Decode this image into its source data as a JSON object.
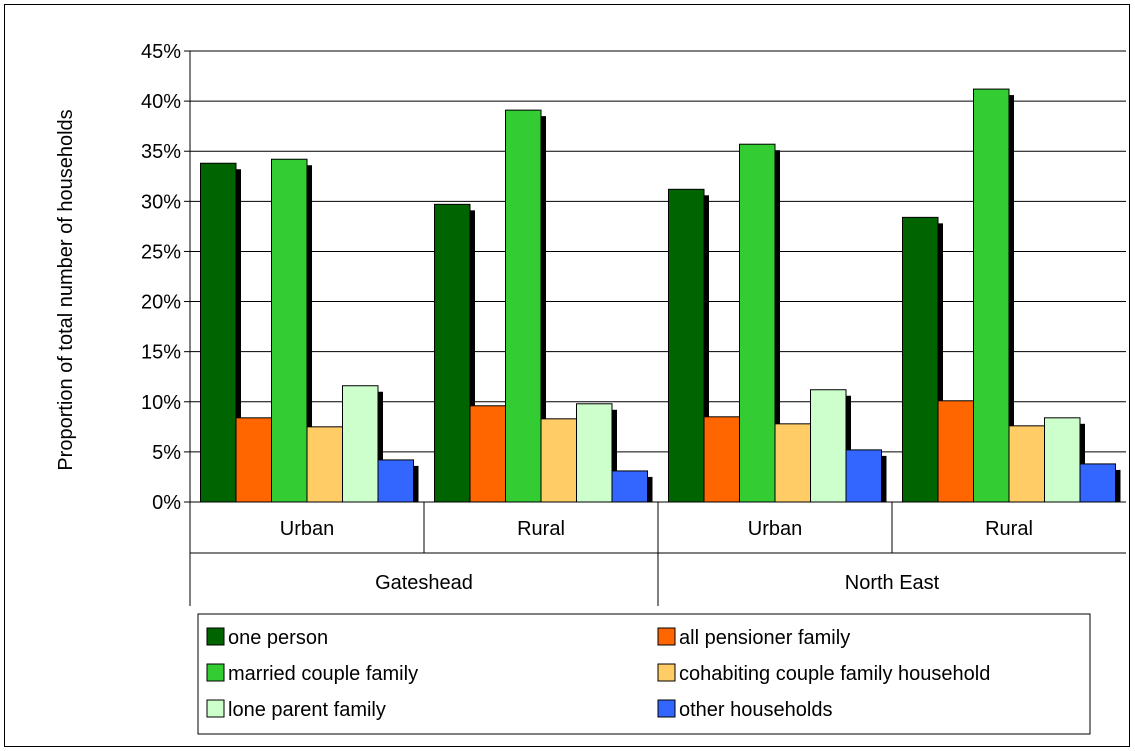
{
  "chart_data": {
    "type": "bar",
    "title": "",
    "ylabel": "Proportion of total number of households",
    "ylim": [
      0,
      45
    ],
    "yticks": [
      "0%",
      "5%",
      "10%",
      "15%",
      "20%",
      "25%",
      "30%",
      "35%",
      "40%",
      "45%"
    ],
    "groups": [
      {
        "label": "Gateshead",
        "categories": [
          "Urban",
          "Rural"
        ]
      },
      {
        "label": "North East",
        "categories": [
          "Urban",
          "Rural"
        ]
      }
    ],
    "categories": [
      "Urban",
      "Rural",
      "Urban",
      "Rural"
    ],
    "series": [
      {
        "name": "one person",
        "color": "#006400",
        "values": [
          33.8,
          29.7,
          31.2,
          28.4
        ]
      },
      {
        "name": "all pensioner family",
        "color": "#ff6600",
        "values": [
          8.4,
          9.6,
          8.5,
          10.1
        ]
      },
      {
        "name": "married couple family",
        "color": "#33cc33",
        "values": [
          34.2,
          39.1,
          35.7,
          41.2
        ]
      },
      {
        "name": "cohabiting couple family household",
        "color": "#ffcc66",
        "values": [
          7.5,
          8.3,
          7.8,
          7.6
        ]
      },
      {
        "name": "lone parent family",
        "color": "#ccffcc",
        "values": [
          11.6,
          9.8,
          11.2,
          8.4
        ]
      },
      {
        "name": "other households",
        "color": "#3366ff",
        "values": [
          4.2,
          3.1,
          5.2,
          3.8
        ]
      }
    ],
    "grid": true,
    "legend_position": "bottom"
  }
}
